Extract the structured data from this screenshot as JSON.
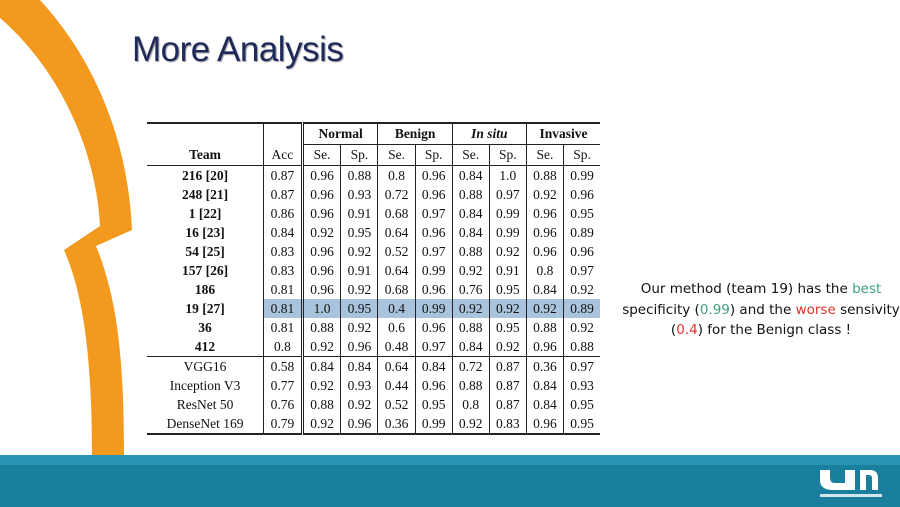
{
  "title": "More Analysis",
  "table": {
    "groups": [
      "Normal",
      "Benign",
      "In situ",
      "Invasive"
    ],
    "columns": [
      "Team",
      "Acc",
      "Se.",
      "Sp.",
      "Se.",
      "Sp.",
      "Se.",
      "Sp.",
      "Se.",
      "Sp."
    ],
    "team_rows": [
      [
        "216 [20]",
        "0.87",
        "0.96",
        "0.88",
        "0.8",
        "0.96",
        "0.84",
        "1.0",
        "0.88",
        "0.99"
      ],
      [
        "248 [21]",
        "0.87",
        "0.96",
        "0.93",
        "0.72",
        "0.96",
        "0.88",
        "0.97",
        "0.92",
        "0.96"
      ],
      [
        "1 [22]",
        "0.86",
        "0.96",
        "0.91",
        "0.68",
        "0.97",
        "0.84",
        "0.99",
        "0.96",
        "0.95"
      ],
      [
        "16 [23]",
        "0.84",
        "0.92",
        "0.95",
        "0.64",
        "0.96",
        "0.84",
        "0.99",
        "0.96",
        "0.89"
      ],
      [
        "54 [25]",
        "0.83",
        "0.96",
        "0.92",
        "0.52",
        "0.97",
        "0.88",
        "0.92",
        "0.96",
        "0.96"
      ],
      [
        "157 [26]",
        "0.83",
        "0.96",
        "0.91",
        "0.64",
        "0.99",
        "0.92",
        "0.91",
        "0.8",
        "0.97"
      ],
      [
        "186",
        "0.81",
        "0.96",
        "0.92",
        "0.68",
        "0.96",
        "0.76",
        "0.95",
        "0.84",
        "0.92"
      ],
      [
        "19 [27]",
        "0.81",
        "1.0",
        "0.95",
        "0.4",
        "0.99",
        "0.92",
        "0.92",
        "0.92",
        "0.89"
      ],
      [
        "36",
        "0.81",
        "0.88",
        "0.92",
        "0.6",
        "0.96",
        "0.88",
        "0.95",
        "0.88",
        "0.92"
      ],
      [
        "412",
        "0.8",
        "0.92",
        "0.96",
        "0.48",
        "0.97",
        "0.84",
        "0.92",
        "0.96",
        "0.88"
      ]
    ],
    "network_rows": [
      [
        "VGG16",
        "0.58",
        "0.84",
        "0.84",
        "0.64",
        "0.84",
        "0.72",
        "0.87",
        "0.36",
        "0.97"
      ],
      [
        "Inception V3",
        "0.77",
        "0.92",
        "0.93",
        "0.44",
        "0.96",
        "0.88",
        "0.87",
        "0.84",
        "0.93"
      ],
      [
        "ResNet 50",
        "0.76",
        "0.88",
        "0.92",
        "0.52",
        "0.95",
        "0.8",
        "0.87",
        "0.84",
        "0.95"
      ],
      [
        "DenseNet 169",
        "0.79",
        "0.92",
        "0.96",
        "0.36",
        "0.99",
        "0.92",
        "0.83",
        "0.96",
        "0.95"
      ]
    ]
  },
  "note": [
    {
      "text": "Our method (team 19) has the "
    },
    {
      "text": "best",
      "color": "#3aa57a"
    },
    {
      "text": " specificity ("
    },
    {
      "text": "0.99",
      "color": "#3aa57a"
    },
    {
      "text": ") and the "
    },
    {
      "text": "worse",
      "color": "#d9342b"
    },
    {
      "text": " sensivity ("
    },
    {
      "text": "0.4",
      "color": "#d9342b"
    },
    {
      "text": ") for the Benign class !"
    }
  ]
}
